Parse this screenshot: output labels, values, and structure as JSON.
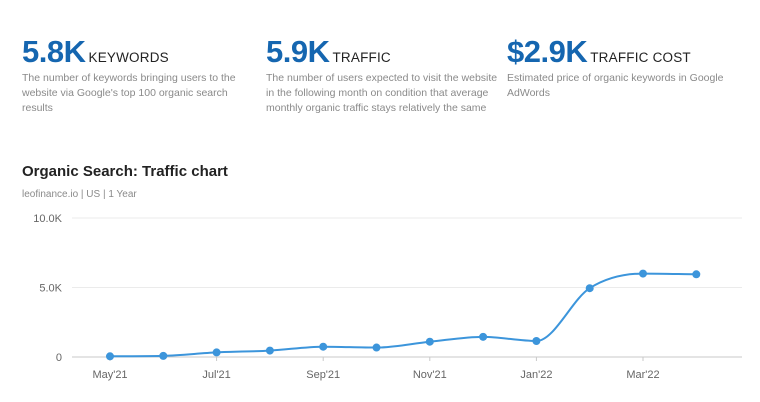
{
  "metrics": [
    {
      "value": "5.8K",
      "label": "KEYWORDS",
      "description": "The number of keywords bringing users to the website via Google's top 100 organic search results"
    },
    {
      "value": "5.9K",
      "label": "TRAFFIC",
      "description": "The number of users expected to visit the website in the following month on condition that average monthly organic traffic stays relatively the same"
    },
    {
      "value": "$2.9K",
      "label": "TRAFFIC COST",
      "description": "Estimated price of organic keywords in Google AdWords"
    }
  ],
  "chart_title": "Organic Search: Traffic chart",
  "chart_subtitle": "leofinance.io | US | 1 Year",
  "chart_data": {
    "type": "line",
    "title": "Organic Search: Traffic chart",
    "subtitle": "leofinance.io | US | 1 Year",
    "xlabel": "",
    "ylabel": "",
    "x": [
      "2021-05-01",
      "2021-06-01",
      "2021-07-01",
      "2021-08-01",
      "2021-09-01",
      "2021-10-01",
      "2021-11-01",
      "2021-12-01",
      "2022-01-01",
      "2022-02-01",
      "2022-03-01",
      "2022-04-01"
    ],
    "x_tick_labels": [
      "May'21",
      "Jul'21",
      "Sep'21",
      "Nov'21",
      "Jan'22",
      "Mar'22"
    ],
    "y_tick_labels": [
      "0",
      "5.0K",
      "10.0K"
    ],
    "y_ticks": [
      0,
      5000,
      10000
    ],
    "ylim": [
      0,
      10000
    ],
    "series": [
      {
        "values": [
          50,
          80,
          330,
          460,
          740,
          680,
          1100,
          1450,
          1150,
          4950,
          6000,
          5950
        ]
      }
    ],
    "grid": true,
    "line_color": "#3c95db",
    "marker_color": "#3c95db"
  }
}
